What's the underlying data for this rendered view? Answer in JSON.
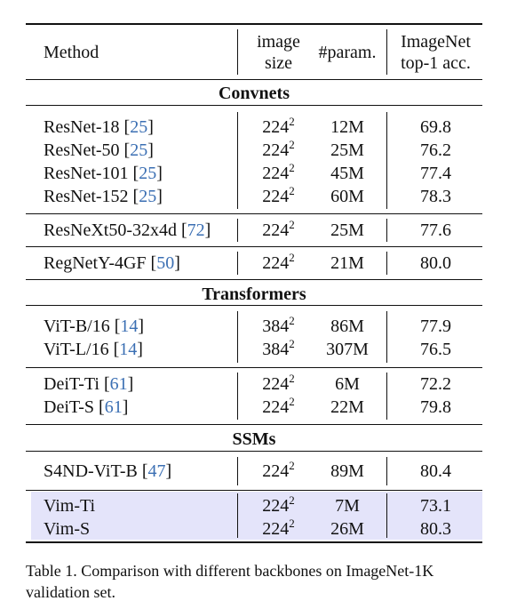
{
  "header": {
    "method": "Method",
    "size_l1": "image",
    "size_l2": "size",
    "param": "#param.",
    "acc_l1": "ImageNet",
    "acc_l2": "top-1 acc."
  },
  "sections": [
    "Convnets",
    "Transformers",
    "SSMs"
  ],
  "rows": [
    {
      "name": "ResNet-18 [",
      "ref": "25",
      "close": "]",
      "size": "224",
      "exp": "2",
      "params": "12M",
      "acc": "69.8"
    },
    {
      "name": "ResNet-50 [",
      "ref": "25",
      "close": "]",
      "size": "224",
      "exp": "2",
      "params": "25M",
      "acc": "76.2"
    },
    {
      "name": "ResNet-101 [",
      "ref": "25",
      "close": "]",
      "size": "224",
      "exp": "2",
      "params": "45M",
      "acc": "77.4"
    },
    {
      "name": "ResNet-152 [",
      "ref": "25",
      "close": "]",
      "size": "224",
      "exp": "2",
      "params": "60M",
      "acc": "78.3"
    },
    {
      "name": "ResNeXt50-32x4d [",
      "ref": "72",
      "close": "]",
      "size": "224",
      "exp": "2",
      "params": "25M",
      "acc": "77.6"
    },
    {
      "name": "RegNetY-4GF [",
      "ref": "50",
      "close": "]",
      "size": "224",
      "exp": "2",
      "params": "21M",
      "acc": "80.0"
    },
    {
      "name": "ViT-B/16 [",
      "ref": "14",
      "close": "]",
      "size": "384",
      "exp": "2",
      "params": "86M",
      "acc": "77.9"
    },
    {
      "name": "ViT-L/16 [",
      "ref": "14",
      "close": "]",
      "size": "384",
      "exp": "2",
      "params": "307M",
      "acc": "76.5"
    },
    {
      "name": "DeiT-Ti [",
      "ref": "61",
      "close": "]",
      "size": "224",
      "exp": "2",
      "params": "6M",
      "acc": "72.2"
    },
    {
      "name": "DeiT-S [",
      "ref": "61",
      "close": "]",
      "size": "224",
      "exp": "2",
      "params": "22M",
      "acc": "79.8"
    },
    {
      "name": "S4ND-ViT-B [",
      "ref": "47",
      "close": "]",
      "size": "224",
      "exp": "2",
      "params": "89M",
      "acc": "80.4"
    },
    {
      "name": "Vim-Ti",
      "ref": "",
      "close": "",
      "size": "224",
      "exp": "2",
      "params": "7M",
      "acc": "73.1"
    },
    {
      "name": "Vim-S",
      "ref": "",
      "close": "",
      "size": "224",
      "exp": "2",
      "params": "26M",
      "acc": "80.3"
    }
  ],
  "caption": "Table 1. Comparison with different backbones on ImageNet-1K validation set.",
  "colors": {
    "highlight": "#e4e4fa",
    "reference": "#3b6fb3"
  }
}
